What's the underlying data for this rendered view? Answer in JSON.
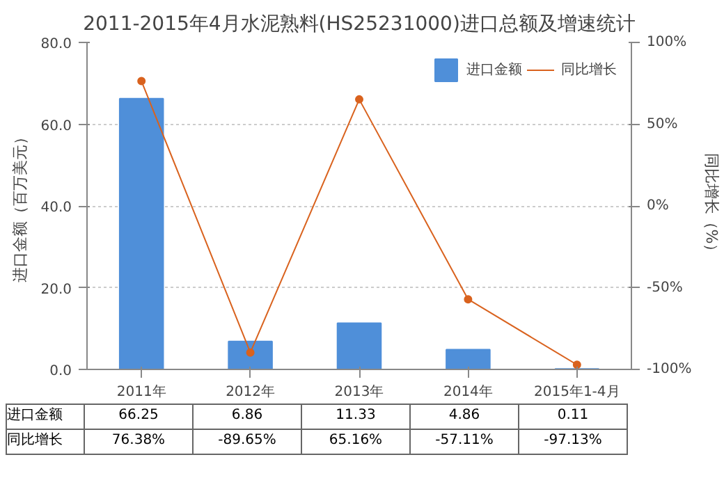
{
  "chart_data": {
    "type": "bar",
    "title": "2011-2015年4月水泥熟料(HS25231000)进口总额及增速统计",
    "ylabel": "进口金额（百万美元）",
    "y2label": "同比增长（%）",
    "categories": [
      "2011年",
      "2012年",
      "2013年",
      "2014年",
      "2015年1-4月"
    ],
    "series": [
      {
        "name": "进口金额",
        "color": "#4f8fd9",
        "values": [
          66.25,
          6.86,
          11.33,
          4.86,
          0.11
        ],
        "value_labels": [
          "66.25",
          "6.86",
          "11.33",
          "4.86",
          "0.11"
        ]
      },
      {
        "name": "同比增长",
        "type": "line",
        "axis": "y2",
        "color": "#d9621e",
        "marker": "circle",
        "values": [
          76.38,
          -89.65,
          65.16,
          -57.11,
          -97.13
        ],
        "value_labels": [
          "76.38%",
          "-89.65%",
          "65.16%",
          "-57.11%",
          "-97.13%"
        ]
      }
    ],
    "ylim": [
      0,
      80
    ],
    "yticks": [
      {
        "value": 0,
        "label": "0.0"
      },
      {
        "value": 20,
        "label": "20.0"
      },
      {
        "value": 40,
        "label": "40.0"
      },
      {
        "value": 60,
        "label": "60.0"
      },
      {
        "value": 80,
        "label": "80.0"
      }
    ],
    "y2lim": [
      -100,
      100
    ],
    "y2ticks": [
      {
        "value": -100,
        "label": "-100%"
      },
      {
        "value": -50,
        "label": "-50%"
      },
      {
        "value": 0,
        "label": "0%"
      },
      {
        "value": 50,
        "label": "50%"
      },
      {
        "value": 100,
        "label": "100%"
      }
    ],
    "grid": "y",
    "legend": "top right",
    "data_labels": true
  }
}
